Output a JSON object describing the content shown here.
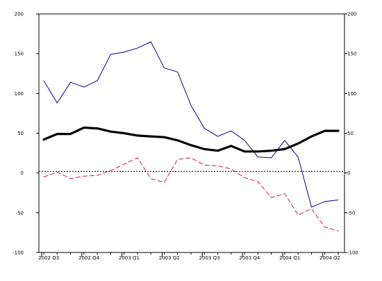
{
  "chart_data": {
    "type": "line",
    "title": "",
    "xlabel": "",
    "ylabel": "",
    "x_ticks": [
      "2002 Q3",
      "2002 Q4",
      "2003 Q1",
      "2003 Q2",
      "2003 Q3",
      "2003 Q4",
      "2004 Q1",
      "2004 Q2"
    ],
    "y_ticks_left": [
      "200",
      "150",
      "100",
      "50",
      "0",
      "-50",
      "-100"
    ],
    "y_ticks_right": [
      "200",
      "150",
      "100",
      "50",
      "0",
      "-50",
      "-100"
    ],
    "ylim": [
      -100,
      200
    ],
    "xlim": [
      0,
      44
    ],
    "reference_line": {
      "value": 2,
      "style": "dotted"
    },
    "series": [
      {
        "color": "#00008b",
        "style": "solid",
        "weight": "thin",
        "x": [
          0,
          2,
          4,
          6,
          8,
          10,
          12,
          14,
          16,
          18,
          20,
          22,
          24,
          26,
          28,
          30,
          32,
          34,
          36,
          38,
          40,
          42,
          44
        ],
        "values": [
          116,
          88,
          114,
          108,
          116,
          149,
          152,
          157,
          165,
          132,
          127,
          85,
          56,
          46,
          53,
          41,
          20,
          19,
          41,
          20,
          -43,
          -36,
          -34
        ]
      },
      {
        "color": "#000000",
        "style": "solid",
        "weight": "thick",
        "x": [
          0,
          2,
          4,
          6,
          8,
          10,
          12,
          14,
          16,
          18,
          20,
          22,
          24,
          26,
          28,
          30,
          32,
          34,
          36,
          38,
          40,
          42,
          44
        ],
        "values": [
          42,
          49,
          49,
          57,
          56,
          52,
          50,
          47,
          46,
          45,
          41,
          35,
          30,
          28,
          34,
          27,
          27,
          28,
          30,
          37,
          46,
          53,
          53
        ]
      },
      {
        "color": "#c2185b",
        "style": "dashed",
        "weight": "thin",
        "x": [
          0,
          2,
          4,
          6,
          8,
          10,
          12,
          14,
          16,
          18,
          20,
          22,
          24,
          26,
          28,
          30,
          32,
          34,
          36,
          38,
          40,
          42,
          44
        ],
        "values": [
          -5,
          1,
          -7,
          -4,
          -3,
          3,
          11,
          19,
          -7,
          -12,
          17,
          19,
          10,
          9,
          5,
          -6,
          -11,
          -31,
          -26,
          -53,
          -45,
          -68,
          -73
        ]
      }
    ]
  }
}
